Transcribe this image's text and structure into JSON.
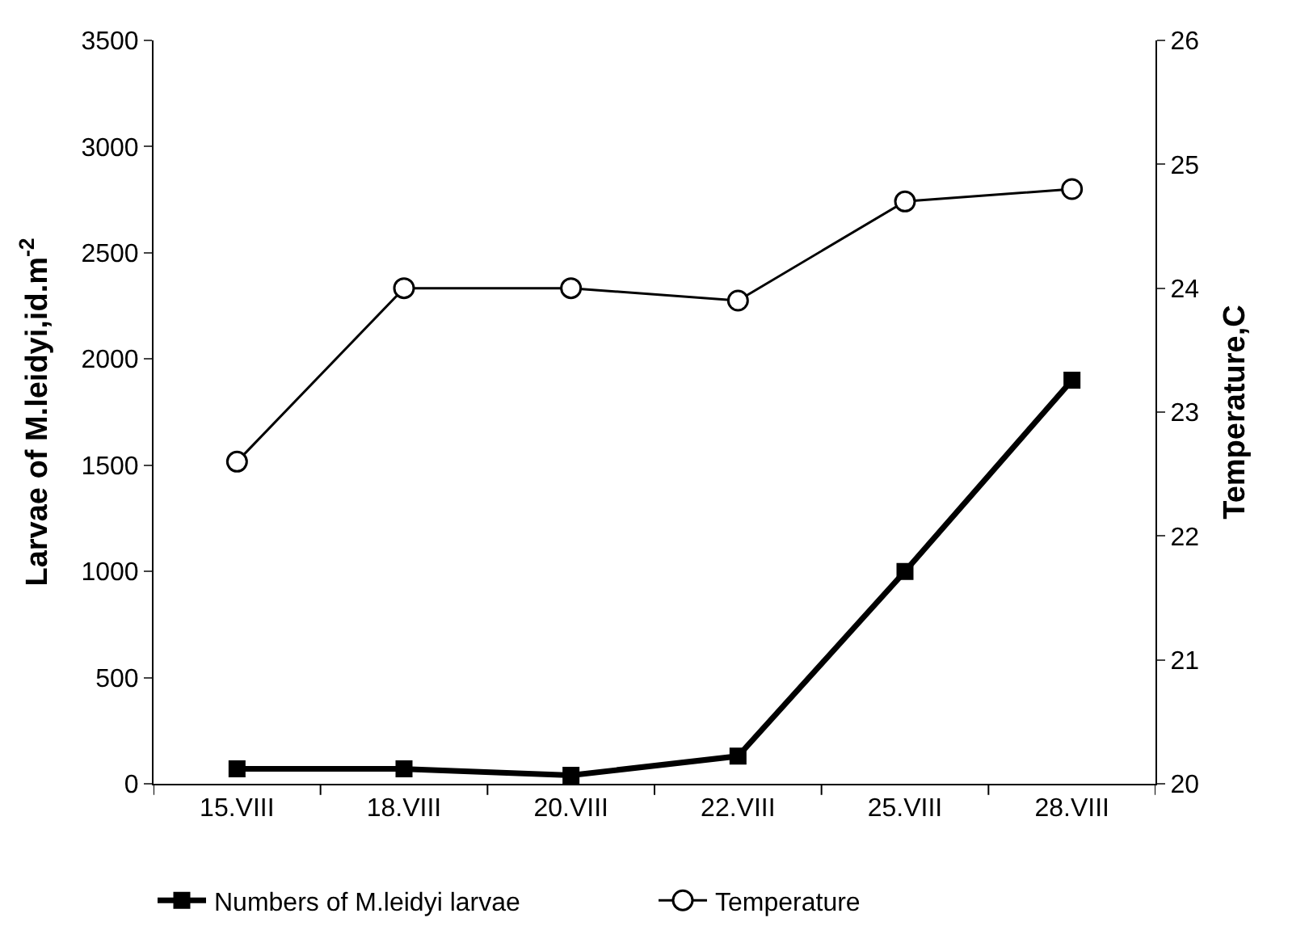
{
  "chart_data": {
    "type": "line",
    "categories": [
      "15.VIII",
      "18.VIII",
      "20.VIII",
      "22.VIII",
      "25.VIII",
      "28.VIII"
    ],
    "ylabel": "Larvae of M.leidyi,id.m$^{-2}$",
    "y2label": "Temperature,C",
    "ylim": [
      0,
      3500
    ],
    "yticks": [
      0,
      500,
      1000,
      1500,
      2000,
      2500,
      3000,
      3500
    ],
    "y2lim": [
      20,
      26
    ],
    "y2ticks": [
      20,
      21,
      22,
      23,
      24,
      25,
      26
    ],
    "legend": "bottom",
    "series": [
      {
        "name": "Numbers of M.leidyi larvae",
        "color": "#000000",
        "marker": "square",
        "values": [
          70,
          70,
          40,
          130,
          1000,
          1900
        ]
      },
      {
        "name": "Temperature",
        "color": "#000000",
        "marker": "circle",
        "axis": "y2",
        "values": [
          22.6,
          24.0,
          24.0,
          23.9,
          24.7,
          24.8
        ]
      }
    ]
  }
}
